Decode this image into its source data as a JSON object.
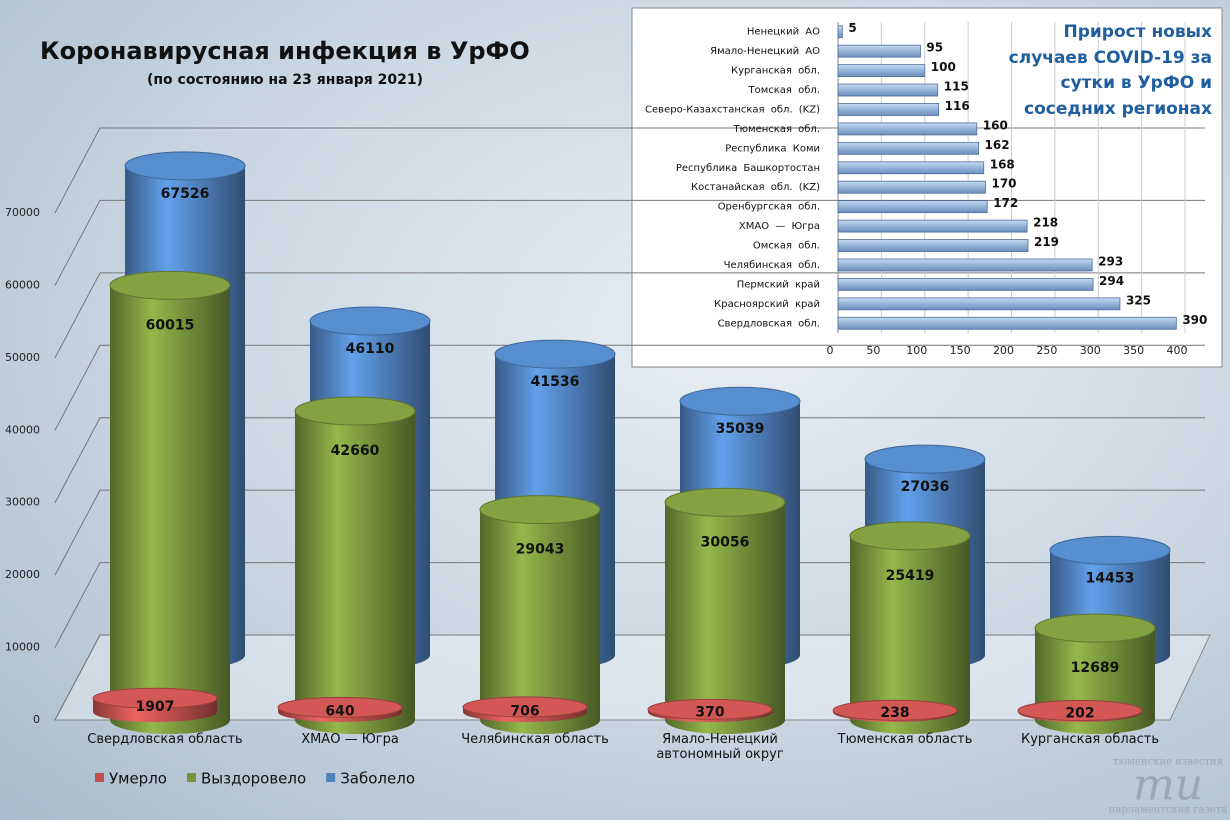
{
  "chart_data": [
    {
      "type": "cylinder",
      "title": "Коронавирусная инфекция в УрФО",
      "subtitle": "(по состоянию на 23 января 2021)",
      "categories": [
        "Свердловская область",
        "ХМАО — Югра",
        "Челябинская область",
        "Ямало-Ненецкий автономный округ",
        "Тюменская область",
        "Курганская область"
      ],
      "series": [
        {
          "name": "Умерло",
          "color": "#c0504d",
          "values": [
            1907,
            640,
            706,
            370,
            238,
            202
          ]
        },
        {
          "name": "Выздоровело",
          "color": "#77933c",
          "values": [
            60015,
            42660,
            29043,
            30056,
            25419,
            12689
          ]
        },
        {
          "name": "Заболело",
          "color": "#4f81bd",
          "values": [
            67526,
            46110,
            41536,
            35039,
            27036,
            14453
          ]
        }
      ],
      "ylim": [
        0,
        70000
      ],
      "yticks": [
        0,
        10000,
        20000,
        30000,
        40000,
        50000,
        60000,
        70000
      ],
      "grid": true,
      "legend": "bottom"
    },
    {
      "type": "barh",
      "title": "Прирост новых случаев COVID-19 за сутки в УрФО и соседних регионах",
      "categories": [
        "Ненецкий АО",
        "Ямало-Ненецкий АО",
        "Курганская обл.",
        "Томская обл.",
        "Северо-Казахстанская обл. (KZ)",
        "Тюменская обл.",
        "Республика Коми",
        "Республика Башкортостан",
        "Костанайская обл. (KZ)",
        "Оренбургская обл.",
        "ХМАО — Югра",
        "Омская обл.",
        "Челябинская обл.",
        "Пермский край",
        "Красноярский край",
        "Свердловская обл."
      ],
      "values": [
        5,
        95,
        100,
        115,
        116,
        160,
        162,
        168,
        170,
        172,
        218,
        219,
        293,
        294,
        325,
        390
      ],
      "color": "#95b3d7",
      "xlim": [
        0,
        400
      ],
      "xticks": [
        0,
        50,
        100,
        150,
        200,
        250,
        300,
        350,
        400
      ],
      "grid": true
    }
  ],
  "logo": {
    "top": "тюменские известия",
    "mark": "ти",
    "bottom": "парламентская газета"
  }
}
